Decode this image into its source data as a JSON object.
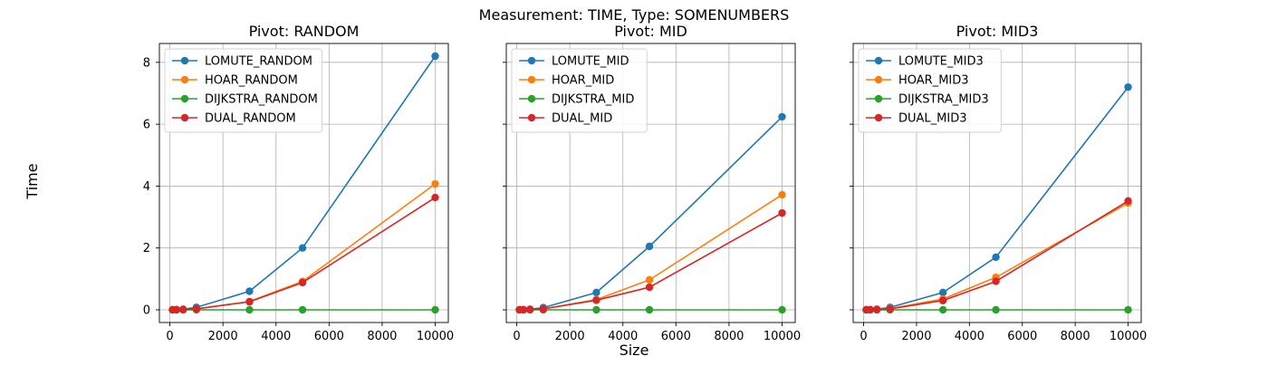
{
  "figure": {
    "suptitle": "Measurement: TIME, Type: SOMENUMBERS",
    "xlabel": "Size",
    "ylabel": "Time"
  },
  "colors": {
    "LOMUTE": "#1f77b4",
    "HOAR": "#ff7f0e",
    "DIJKSTRA": "#2ca02c",
    "DUAL": "#d62728",
    "grid": "#b0b0b0"
  },
  "chart_data": [
    {
      "type": "line",
      "title": "Pivot: RANDOM",
      "x": [
        100,
        250,
        500,
        1000,
        3000,
        5000,
        10000
      ],
      "xlim": [
        -395,
        10495
      ],
      "ylim": [
        -0.41,
        8.61
      ],
      "xticks": [
        0,
        2000,
        4000,
        6000,
        8000,
        10000
      ],
      "yticks": [
        0,
        2,
        4,
        6,
        8
      ],
      "grid": true,
      "legend_position": "upper-left",
      "series": [
        {
          "name": "LOMUTE_RANDOM",
          "values": [
            0.002,
            0.006,
            0.02,
            0.08,
            0.6,
            2.0,
            8.2
          ]
        },
        {
          "name": "HOAR_RANDOM",
          "values": [
            0.001,
            0.003,
            0.01,
            0.03,
            0.27,
            0.92,
            4.07
          ]
        },
        {
          "name": "DIJKSTRA_RANDOM",
          "values": [
            0.0,
            0.0,
            0.0,
            0.0,
            0.0,
            0.0,
            0.0
          ]
        },
        {
          "name": "DUAL_RANDOM",
          "values": [
            0.001,
            0.003,
            0.01,
            0.03,
            0.26,
            0.88,
            3.63
          ]
        }
      ]
    },
    {
      "type": "line",
      "title": "Pivot: MID",
      "x": [
        100,
        250,
        500,
        1000,
        3000,
        5000,
        10000
      ],
      "xlim": [
        -395,
        10495
      ],
      "ylim": [
        -0.41,
        8.61
      ],
      "xticks": [
        0,
        2000,
        4000,
        6000,
        8000,
        10000
      ],
      "yticks": [
        0,
        2,
        4,
        6,
        8
      ],
      "grid": true,
      "legend_position": "upper-left",
      "series": [
        {
          "name": "LOMUTE_MID",
          "values": [
            0.002,
            0.006,
            0.02,
            0.07,
            0.56,
            2.05,
            6.24
          ]
        },
        {
          "name": "HOAR_MID",
          "values": [
            0.001,
            0.003,
            0.01,
            0.03,
            0.33,
            0.97,
            3.72
          ]
        },
        {
          "name": "DIJKSTRA_MID",
          "values": [
            0.0,
            0.0,
            0.0,
            0.0,
            0.0,
            0.0,
            0.0
          ]
        },
        {
          "name": "DUAL_MID",
          "values": [
            0.001,
            0.003,
            0.01,
            0.03,
            0.31,
            0.73,
            3.13
          ]
        }
      ]
    },
    {
      "type": "line",
      "title": "Pivot: MID3",
      "x": [
        100,
        250,
        500,
        1000,
        3000,
        5000,
        10000
      ],
      "xlim": [
        -395,
        10495
      ],
      "ylim": [
        -0.41,
        8.61
      ],
      "xticks": [
        0,
        2000,
        4000,
        6000,
        8000,
        10000
      ],
      "yticks": [
        0,
        2,
        4,
        6,
        8
      ],
      "grid": true,
      "legend_position": "upper-left",
      "series": [
        {
          "name": "LOMUTE_MID3",
          "values": [
            0.002,
            0.006,
            0.02,
            0.08,
            0.56,
            1.7,
            7.2
          ]
        },
        {
          "name": "HOAR_MID3",
          "values": [
            0.001,
            0.003,
            0.01,
            0.04,
            0.35,
            1.05,
            3.45
          ]
        },
        {
          "name": "DIJKSTRA_MID3",
          "values": [
            0.0,
            0.0,
            0.0,
            0.0,
            0.0,
            0.0,
            0.0
          ]
        },
        {
          "name": "DUAL_MID3",
          "values": [
            0.001,
            0.003,
            0.01,
            0.03,
            0.3,
            0.92,
            3.52
          ]
        }
      ]
    }
  ]
}
